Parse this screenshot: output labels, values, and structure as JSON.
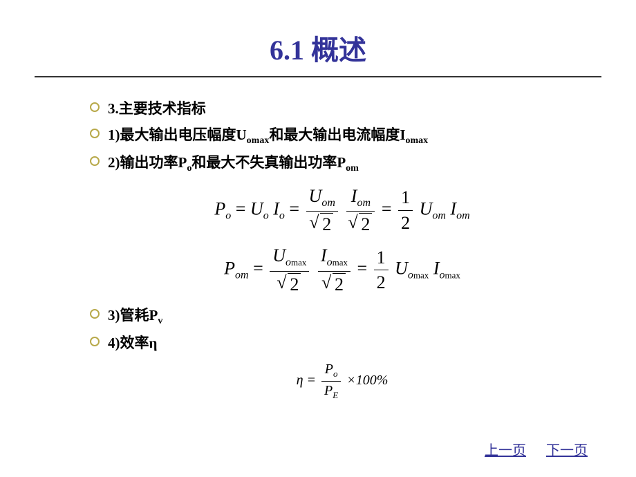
{
  "title": "6.1 概述",
  "bullets": {
    "b1": "3.主要技术指标",
    "b2_prefix": "1)最大输出电压幅度U",
    "b2_sub1": "omax",
    "b2_mid": "和最大输出电流幅度I",
    "b2_sub2": "omax",
    "b3_prefix": "2)输出功率P",
    "b3_sub1": "o",
    "b3_mid": "和最大不失真输出功率P",
    "b3_sub2": "om",
    "b4_prefix": "3)管耗P",
    "b4_sub": "v",
    "b5": "4)效率η"
  },
  "formula1": {
    "P": "P",
    "o": "o",
    "eq": " = ",
    "U": "U",
    "I": "I",
    "om": "om",
    "sqrt2": "2",
    "half_num": "1",
    "half_den": "2"
  },
  "formula2": {
    "P": "P",
    "om": "om",
    "eq": " = ",
    "U": "U",
    "I": "I",
    "omax": "o",
    "max": "max",
    "sqrt2": "2",
    "half_num": "1",
    "half_den": "2"
  },
  "formula3": {
    "eta": "η",
    "eq": " = ",
    "P": "P",
    "o": "o",
    "E": "E",
    "times100": "×100%"
  },
  "nav": {
    "prev": "上一页",
    "next": "下一页"
  },
  "colors": {
    "title": "#333399",
    "underline": "#333333",
    "bullet_ring": "#b8a94a",
    "text": "#000000",
    "link": "#333399",
    "background": "#ffffff"
  },
  "typography": {
    "title_fontsize": 40,
    "bullet_fontsize": 21,
    "formula_fontsize": 26,
    "formula_small_fontsize": 20,
    "nav_fontsize": 20
  }
}
